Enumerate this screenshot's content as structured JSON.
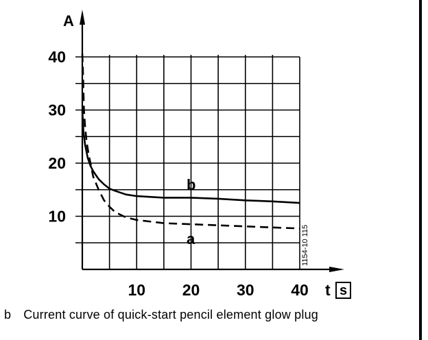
{
  "chart_data": {
    "type": "line",
    "ylabel": "A",
    "xlabel": "t",
    "xunit": "s",
    "xlim": [
      0,
      40
    ],
    "ylim": [
      0,
      40
    ],
    "xticks": [
      10,
      20,
      30,
      40
    ],
    "yticks": [
      10,
      20,
      30,
      40
    ],
    "grid": true,
    "figure_code": "1154-10 115",
    "series": [
      {
        "name": "b",
        "style": "solid",
        "x": [
          0,
          0.2,
          0.5,
          1,
          1.5,
          2,
          3,
          4,
          5,
          6,
          8,
          10,
          15,
          20,
          25,
          30,
          35,
          40
        ],
        "y": [
          30,
          26,
          23.5,
          21,
          19.5,
          18.5,
          17,
          16,
          15.2,
          14.8,
          14.1,
          13.8,
          13.5,
          13.5,
          13.3,
          13.0,
          12.8,
          12.5
        ]
      },
      {
        "name": "a",
        "style": "dashed",
        "x": [
          0,
          0.1,
          0.2,
          0.3,
          0.5,
          0.8,
          1.2,
          1.6,
          2,
          3,
          4,
          5,
          6,
          8,
          10,
          15,
          20,
          25,
          30,
          35,
          40
        ],
        "y": [
          42,
          38,
          34,
          30,
          27,
          24,
          21.5,
          19.5,
          17.5,
          15,
          13,
          11.8,
          10.8,
          9.8,
          9.3,
          8.7,
          8.5,
          8.3,
          8.1,
          7.9,
          7.7
        ]
      }
    ]
  },
  "caption": {
    "tag": "b",
    "text": "Current curve of quick-start pencil element glow plug"
  }
}
